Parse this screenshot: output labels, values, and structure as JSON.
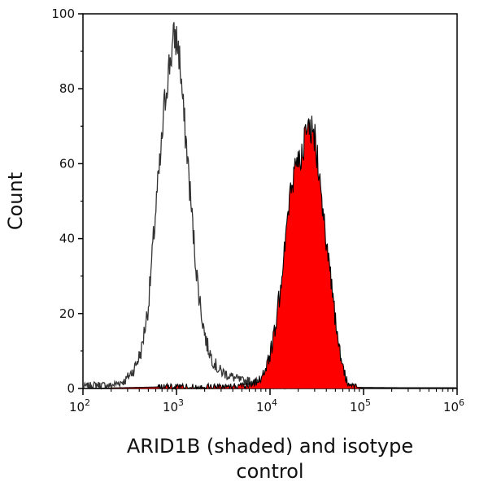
{
  "chart_data": {
    "type": "area",
    "xlabel_lines": [
      "ARID1B (shaded) and isotype",
      "control"
    ],
    "ylabel": "Count",
    "x_scale": "log10",
    "xlim": [
      100,
      1000000
    ],
    "ylim": [
      0,
      100
    ],
    "x_ticks": [
      {
        "base": "10",
        "exp": "2",
        "value": 100
      },
      {
        "base": "10",
        "exp": "3",
        "value": 1000
      },
      {
        "base": "10",
        "exp": "4",
        "value": 10000
      },
      {
        "base": "10",
        "exp": "5",
        "value": 100000
      },
      {
        "base": "10",
        "exp": "6",
        "value": 1000000
      }
    ],
    "y_ticks": [
      "0",
      "20",
      "40",
      "60",
      "80",
      "100"
    ],
    "grid": false,
    "series": [
      {
        "role": "isotype control",
        "style": "outline",
        "color": "#333333",
        "x": [
          100,
          140,
          200,
          280,
          350,
          420,
          500,
          560,
          620,
          680,
          740,
          800,
          860,
          920,
          960,
          1000,
          1060,
          1120,
          1200,
          1300,
          1400,
          1550,
          1700,
          1900,
          2100,
          2400,
          2800,
          3300,
          4000,
          5000,
          6500,
          8000,
          10000,
          13000,
          20000,
          50000,
          100000,
          300000,
          1000000
        ],
        "y": [
          0.5,
          1,
          0.8,
          2,
          5,
          10,
          22,
          38,
          52,
          62,
          75,
          83,
          88,
          92,
          94,
          93,
          90,
          83,
          72,
          63,
          52,
          38,
          27,
          18,
          12,
          8,
          5,
          4,
          3,
          2,
          2,
          1.5,
          1,
          0.5,
          0.3,
          0.2,
          0.3,
          0.2,
          0.2
        ]
      },
      {
        "role": "ARID1B",
        "style": "shaded",
        "color": "#ff0000",
        "x": [
          100,
          1000,
          3000,
          6000,
          7500,
          9000,
          10000,
          11000,
          12000,
          13000,
          14000,
          15500,
          17000,
          19000,
          21000,
          23000,
          25000,
          27000,
          29000,
          31000,
          34000,
          37000,
          40000,
          44000,
          48000,
          52000,
          57000,
          62000,
          70000,
          80000,
          100000,
          1000000
        ],
        "y": [
          0,
          0.5,
          0.5,
          1,
          2,
          5,
          9,
          14,
          20,
          28,
          37,
          45,
          54,
          60,
          63,
          65,
          68,
          70,
          68,
          65,
          58,
          48,
          38,
          30,
          22,
          14,
          8,
          4,
          1,
          0.5,
          0,
          0
        ]
      }
    ]
  }
}
